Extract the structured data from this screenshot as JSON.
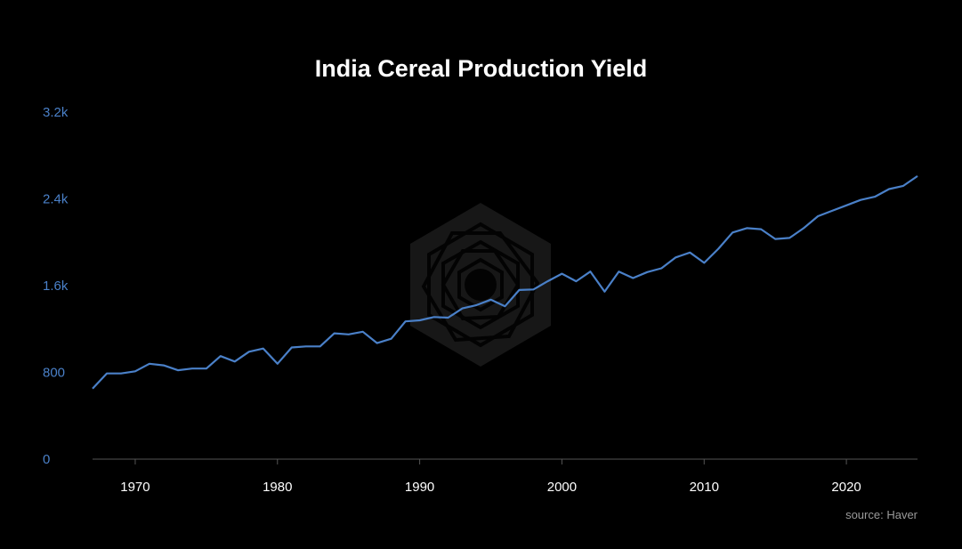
{
  "chart_data": {
    "type": "line",
    "title": "India Cereal Production Yield",
    "xlabel": "",
    "ylabel": "",
    "source": "source: Haver",
    "xlim": [
      1967,
      2025
    ],
    "ylim": [
      0,
      3200
    ],
    "x_ticks": [
      1970,
      1980,
      1990,
      2000,
      2010,
      2020
    ],
    "x_tick_labels": [
      "1970",
      "1980",
      "1990",
      "2000",
      "2010",
      "2020"
    ],
    "y_ticks": [
      0,
      800,
      1600,
      2400,
      3200
    ],
    "y_tick_labels": [
      "0",
      "800",
      "1.6k",
      "2.4k",
      "3.2k"
    ],
    "grid": false,
    "colors": {
      "line": "#4a80c8",
      "ytick_text": "#4a80c8",
      "xtick_text": "#ffffff",
      "axis": "#555555",
      "background": "#000000"
    },
    "series": [
      {
        "name": "India Cereal Production Yield",
        "x": [
          1967,
          1968,
          1969,
          1970,
          1971,
          1972,
          1973,
          1974,
          1975,
          1976,
          1977,
          1978,
          1979,
          1980,
          1981,
          1982,
          1983,
          1984,
          1985,
          1986,
          1987,
          1988,
          1989,
          1990,
          1991,
          1992,
          1993,
          1994,
          1995,
          1996,
          1997,
          1998,
          1999,
          2000,
          2001,
          2002,
          2003,
          2004,
          2005,
          2006,
          2007,
          2008,
          2009,
          2010,
          2011,
          2012,
          2013,
          2014,
          2015,
          2016,
          2017,
          2018,
          2019,
          2020,
          2021,
          2022,
          2023,
          2024,
          2025
        ],
        "values": [
          650,
          790,
          790,
          810,
          880,
          865,
          820,
          835,
          835,
          950,
          900,
          990,
          1020,
          880,
          1030,
          1040,
          1040,
          1160,
          1150,
          1175,
          1070,
          1110,
          1270,
          1280,
          1310,
          1305,
          1390,
          1420,
          1470,
          1410,
          1560,
          1565,
          1640,
          1710,
          1640,
          1730,
          1545,
          1730,
          1670,
          1725,
          1760,
          1860,
          1905,
          1810,
          1940,
          2090,
          2130,
          2120,
          2030,
          2040,
          2130,
          2240,
          2290,
          2340,
          2390,
          2420,
          2490,
          2520,
          2610
        ]
      }
    ]
  }
}
